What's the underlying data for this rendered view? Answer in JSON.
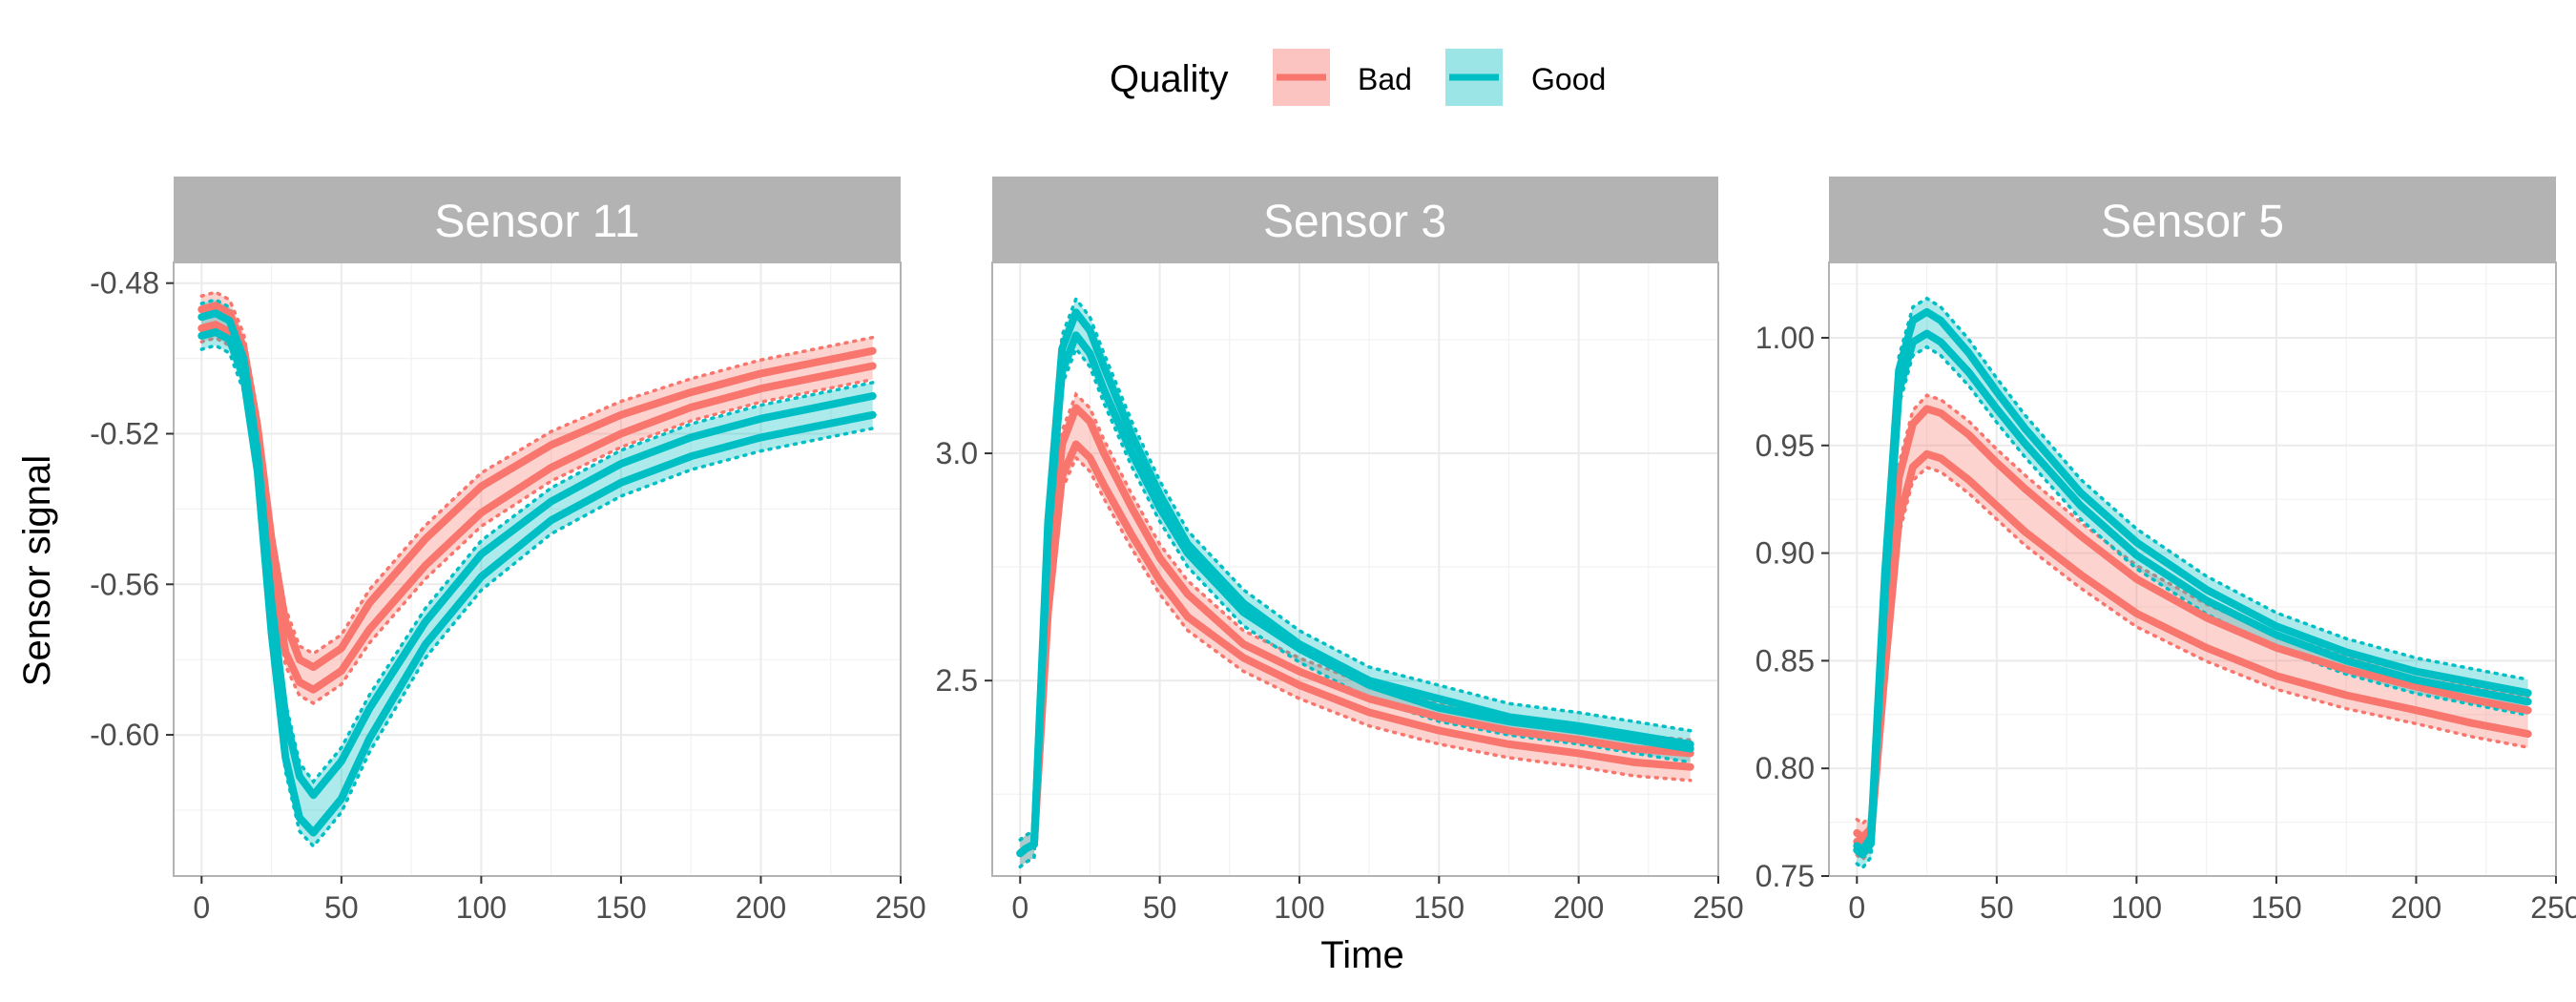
{
  "chart_data": {
    "type": "line",
    "xlabel": "Time",
    "ylabel": "Sensor signal",
    "legend": {
      "title": "Quality",
      "placement": "top",
      "entries": [
        {
          "name": "Bad",
          "color": "#f8766d",
          "ribbon": "#fbc4c0"
        },
        {
          "name": "Good",
          "color": "#00bfc4",
          "ribbon": "#9be5e7"
        }
      ]
    },
    "grid": true,
    "panels": [
      {
        "title": "Sensor 11",
        "xlim": [
          -10,
          250
        ],
        "ylim": [
          -0.6375,
          -0.4745
        ],
        "x_ticks": [
          "0",
          "50",
          "100",
          "150",
          "200",
          "250"
        ],
        "x_tick_values": [
          0,
          50,
          100,
          150,
          200,
          250
        ],
        "y_ticks": [
          "-0.48",
          "-0.52",
          "-0.56",
          "-0.60"
        ],
        "y_tick_values": [
          -0.48,
          -0.52,
          -0.56,
          -0.6
        ],
        "x": [
          0,
          5,
          10,
          15,
          20,
          25,
          30,
          35,
          40,
          50,
          60,
          80,
          100,
          125,
          150,
          175,
          200,
          220,
          240
        ],
        "series": [
          {
            "name": "Bad",
            "line": "upper",
            "values": [
              -0.487,
              -0.486,
              -0.488,
              -0.497,
              -0.518,
              -0.548,
              -0.57,
              -0.58,
              -0.582,
              -0.577,
              -0.565,
              -0.548,
              -0.534,
              -0.523,
              -0.515,
              -0.509,
              -0.504,
              -0.501,
              -0.498
            ]
          },
          {
            "name": "Bad",
            "line": "lower",
            "values": [
              -0.492,
              -0.491,
              -0.493,
              -0.502,
              -0.523,
              -0.555,
              -0.578,
              -0.586,
              -0.588,
              -0.583,
              -0.572,
              -0.555,
              -0.541,
              -0.529,
              -0.52,
              -0.513,
              -0.508,
              -0.505,
              -0.502
            ]
          },
          {
            "name": "Good",
            "line": "upper",
            "values": [
              -0.489,
              -0.488,
              -0.49,
              -0.5,
              -0.525,
              -0.565,
              -0.595,
              -0.611,
              -0.616,
              -0.607,
              -0.593,
              -0.57,
              -0.552,
              -0.538,
              -0.528,
              -0.521,
              -0.516,
              -0.513,
              -0.51
            ]
          },
          {
            "name": "Good",
            "line": "lower",
            "values": [
              -0.494,
              -0.493,
              -0.495,
              -0.505,
              -0.53,
              -0.573,
              -0.606,
              -0.622,
              -0.626,
              -0.617,
              -0.601,
              -0.576,
              -0.558,
              -0.543,
              -0.533,
              -0.526,
              -0.521,
              -0.518,
              -0.515
            ]
          }
        ]
      },
      {
        "title": "Sensor 3",
        "xlim": [
          -10,
          250
        ],
        "ylim": [
          2.07,
          3.42
        ],
        "x_ticks": [
          "0",
          "50",
          "100",
          "150",
          "200",
          "250"
        ],
        "x_tick_values": [
          0,
          50,
          100,
          150,
          200,
          250
        ],
        "y_ticks": [
          "2.5",
          "3.0"
        ],
        "y_tick_values": [
          2.5,
          3.0
        ],
        "x": [
          0,
          2,
          5,
          10,
          15,
          20,
          25,
          30,
          40,
          50,
          60,
          80,
          100,
          125,
          150,
          175,
          200,
          220,
          240
        ],
        "series": [
          {
            "name": "Bad",
            "line": "upper",
            "values": [
              2.12,
              2.13,
              2.14,
              2.7,
              3.02,
              3.1,
              3.07,
              3.0,
              2.88,
              2.77,
              2.69,
              2.58,
              2.52,
              2.46,
              2.42,
              2.39,
              2.37,
              2.35,
              2.34
            ]
          },
          {
            "name": "Bad",
            "line": "lower",
            "values": [
              2.12,
              2.13,
              2.14,
              2.65,
              2.95,
              3.02,
              2.99,
              2.93,
              2.82,
              2.72,
              2.64,
              2.55,
              2.49,
              2.43,
              2.39,
              2.36,
              2.34,
              2.32,
              2.31
            ]
          },
          {
            "name": "Good",
            "line": "upper",
            "values": [
              2.12,
              2.13,
              2.14,
              2.85,
              3.23,
              3.31,
              3.27,
              3.19,
              3.04,
              2.91,
              2.8,
              2.67,
              2.58,
              2.5,
              2.46,
              2.42,
              2.4,
              2.38,
              2.36
            ]
          },
          {
            "name": "Good",
            "line": "lower",
            "values": [
              2.12,
              2.13,
              2.14,
              2.82,
              3.18,
              3.26,
              3.22,
              3.14,
              3.0,
              2.88,
              2.78,
              2.65,
              2.57,
              2.49,
              2.44,
              2.41,
              2.39,
              2.37,
              2.35
            ]
          }
        ]
      },
      {
        "title": "Sensor 5",
        "xlim": [
          -10,
          250
        ],
        "ylim": [
          0.75,
          1.035
        ],
        "x_ticks": [
          "0",
          "50",
          "100",
          "150",
          "200",
          "250"
        ],
        "x_tick_values": [
          0,
          50,
          100,
          150,
          200,
          250
        ],
        "y_ticks": [
          "0.75",
          "0.80",
          "0.85",
          "0.90",
          "0.95",
          "1.00"
        ],
        "y_tick_values": [
          0.75,
          0.8,
          0.85,
          0.9,
          0.95,
          1.0
        ],
        "x": [
          0,
          2,
          5,
          10,
          15,
          20,
          25,
          30,
          40,
          50,
          60,
          80,
          100,
          125,
          150,
          175,
          200,
          220,
          240
        ],
        "series": [
          {
            "name": "Bad",
            "line": "upper",
            "values": [
              0.77,
              0.768,
              0.772,
              0.86,
              0.935,
              0.96,
              0.967,
              0.965,
              0.955,
              0.942,
              0.93,
              0.908,
              0.888,
              0.87,
              0.856,
              0.846,
              0.838,
              0.832,
              0.827
            ]
          },
          {
            "name": "Bad",
            "line": "lower",
            "values": [
              0.766,
              0.764,
              0.768,
              0.845,
              0.915,
              0.94,
              0.946,
              0.944,
              0.934,
              0.922,
              0.91,
              0.89,
              0.872,
              0.856,
              0.843,
              0.834,
              0.827,
              0.821,
              0.816
            ]
          },
          {
            "name": "Good",
            "line": "upper",
            "values": [
              0.764,
              0.762,
              0.768,
              0.89,
              0.985,
              1.008,
              1.012,
              1.008,
              0.993,
              0.975,
              0.958,
              0.928,
              0.905,
              0.883,
              0.866,
              0.854,
              0.845,
              0.84,
              0.835
            ]
          },
          {
            "name": "Good",
            "line": "lower",
            "values": [
              0.762,
              0.76,
              0.765,
              0.88,
              0.975,
              0.998,
              1.002,
              0.998,
              0.984,
              0.967,
              0.951,
              0.922,
              0.899,
              0.878,
              0.862,
              0.85,
              0.841,
              0.836,
              0.831
            ]
          }
        ]
      }
    ]
  }
}
